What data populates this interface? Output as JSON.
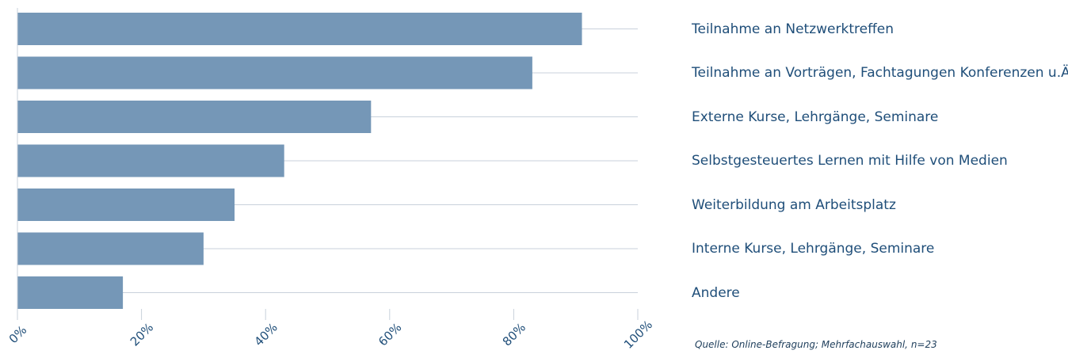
{
  "chart_data": {
    "type": "bar",
    "orientation": "horizontal",
    "categories": [
      "Teilnahme an Netzwerktreffen",
      "Teilnahme an Vorträgen, Fachtagungen Konferenzen u.Ä.",
      "Externe Kurse, Lehrgänge, Seminare",
      "Selbstgesteuertes Lernen mit Hilfe von Medien",
      "Weiterbildung am Arbeitsplatz",
      "Interne Kurse, Lehrgänge, Seminare",
      "Andere"
    ],
    "values": [
      91,
      83,
      57,
      43,
      35,
      30,
      17
    ],
    "xlim": [
      0,
      100
    ],
    "x_ticks": [
      "0%",
      "20%",
      "40%",
      "60%",
      "80%",
      "100%"
    ],
    "grid": "horizontal row lines",
    "bar_color": "#7597b7",
    "label_color": "#1f4e79",
    "source": "Quelle: Online-Befragung; Mehrfachauswahl, n=23"
  }
}
